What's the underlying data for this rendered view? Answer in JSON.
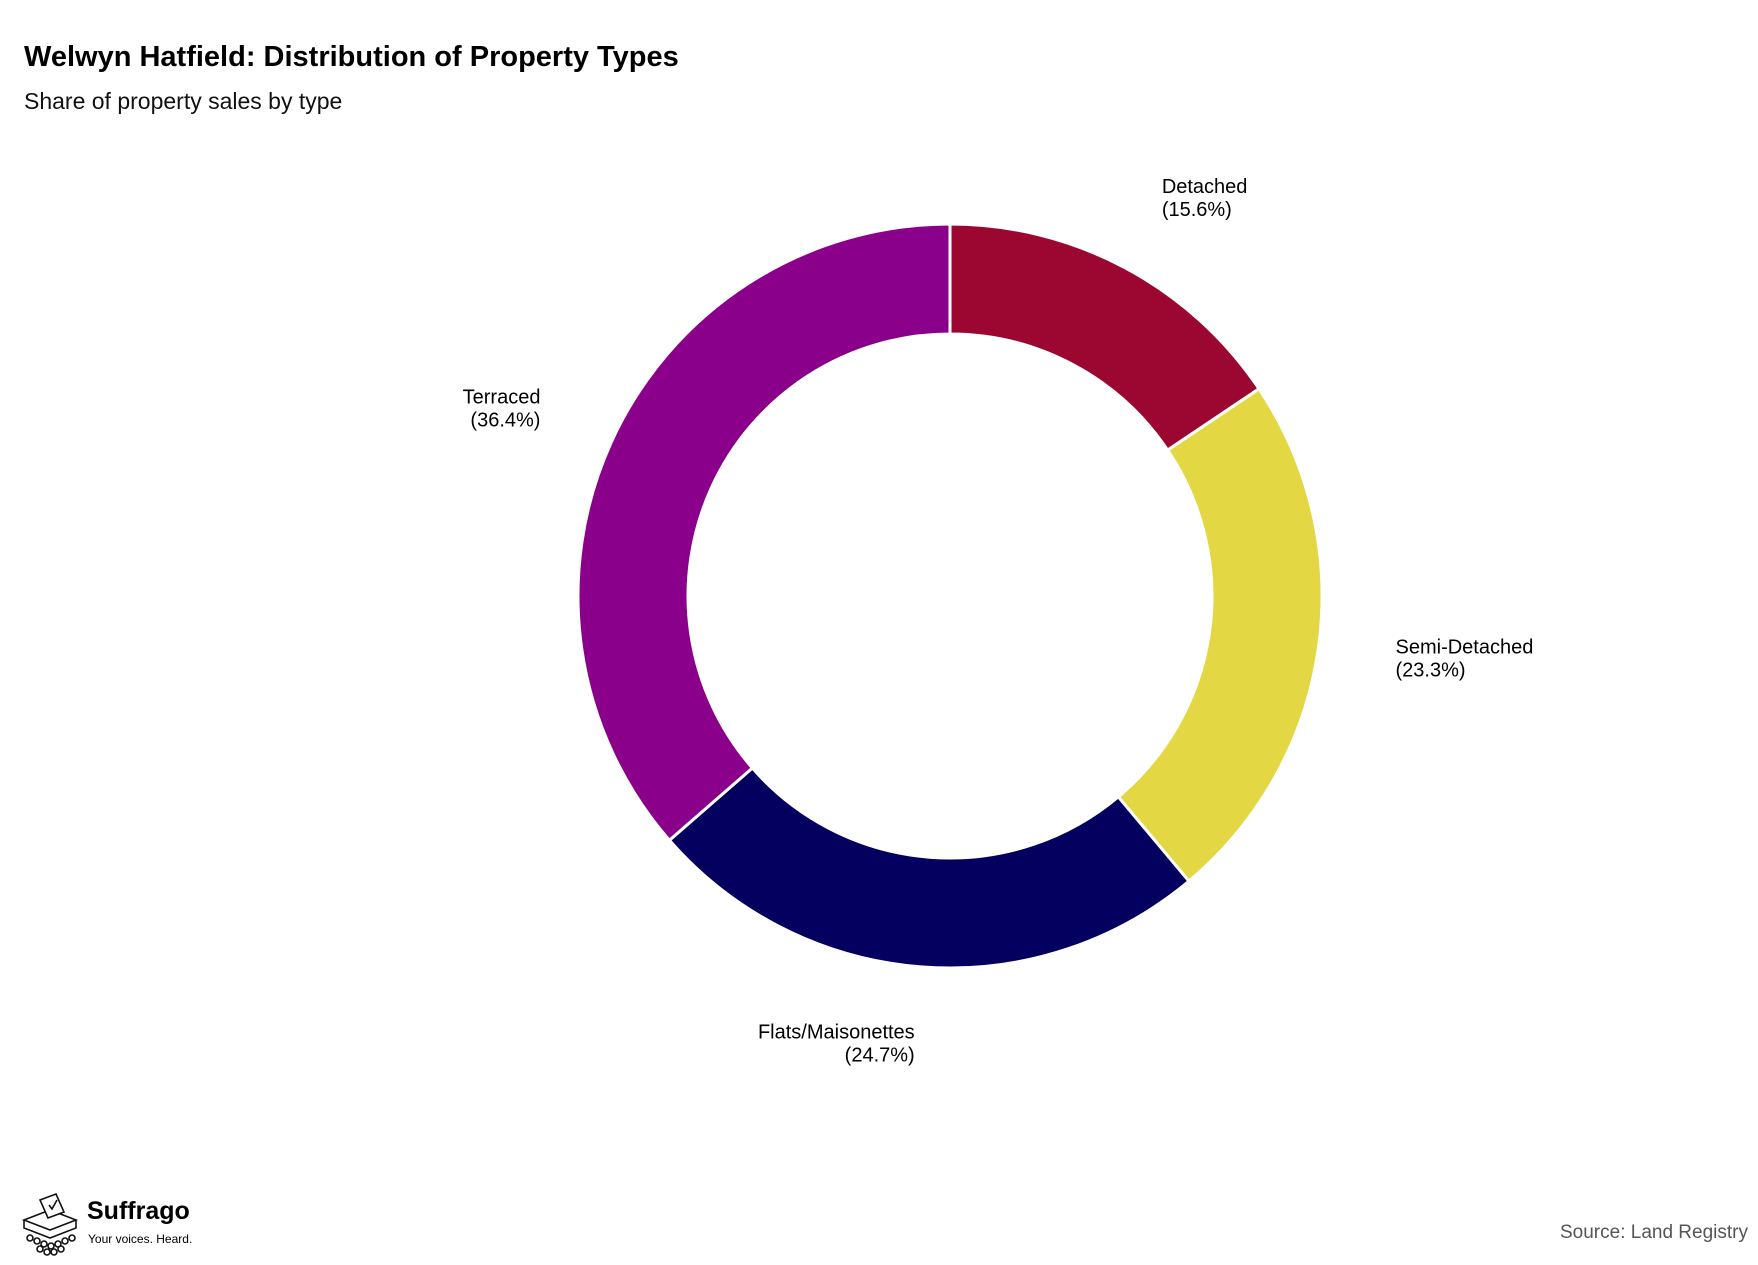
{
  "header": {
    "title": "Welwyn Hatfield: Distribution of Property Types",
    "subtitle": "Share of property sales by type"
  },
  "footer": {
    "brand": "Suffrago",
    "tagline": "Your voices. Heard.",
    "source": "Source: Land Registry"
  },
  "chart_data": {
    "type": "pie",
    "variant": "donut",
    "title": "Welwyn Hatfield: Distribution of Property Types",
    "subtitle": "Share of property sales by type",
    "categories": [
      "Detached",
      "Semi-Detached",
      "Flats/Maisonettes",
      "Terraced"
    ],
    "values": [
      15.6,
      23.3,
      24.7,
      36.4
    ],
    "labels": [
      "(15.6%)",
      "(23.3%)",
      "(24.7%)",
      "(36.4%)"
    ],
    "colors": [
      "#9b0731",
      "#e3d843",
      "#03005f",
      "#8a008a"
    ],
    "unit": "%",
    "start_angle": "12 o'clock",
    "direction": "clockwise",
    "legend": "none"
  }
}
